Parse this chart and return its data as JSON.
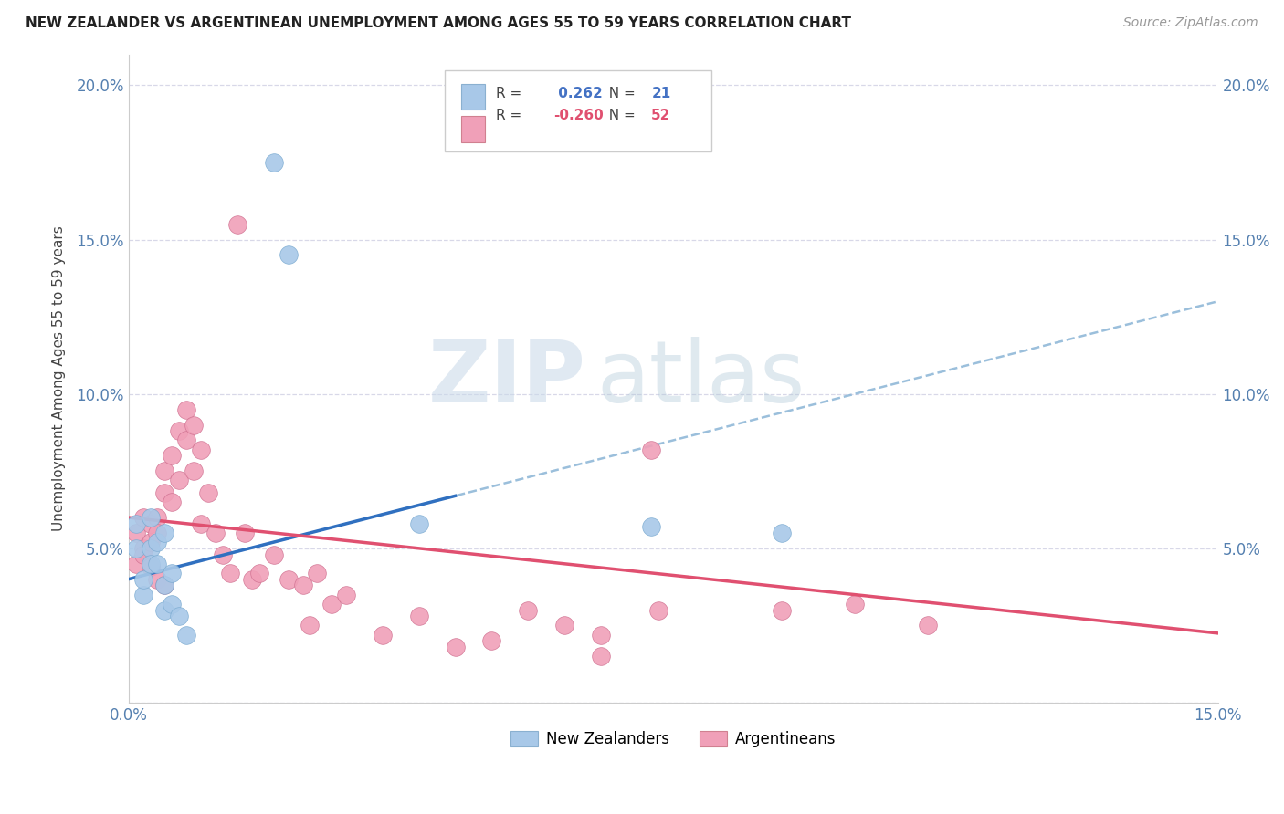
{
  "title": "NEW ZEALANDER VS ARGENTINEAN UNEMPLOYMENT AMONG AGES 55 TO 59 YEARS CORRELATION CHART",
  "source": "Source: ZipAtlas.com",
  "ylabel": "Unemployment Among Ages 55 to 59 years",
  "xlim": [
    0,
    0.15
  ],
  "ylim": [
    0,
    0.21
  ],
  "yticks": [
    0.0,
    0.05,
    0.1,
    0.15,
    0.2
  ],
  "yticklabels": [
    "",
    "5.0%",
    "10.0%",
    "15.0%",
    "20.0%"
  ],
  "xticks": [
    0.0,
    0.15
  ],
  "xticklabels": [
    "0.0%",
    "15.0%"
  ],
  "nz_color": "#a8c8e8",
  "arg_color": "#f0a0b8",
  "nz_trend_color": "#3070c0",
  "arg_trend_color": "#e05070",
  "dashed_color": "#90b8d8",
  "tick_color": "#5580b0",
  "grid_color": "#d8d8e8",
  "legend_nz_r": " 0.262",
  "legend_nz_n": "21",
  "legend_arg_r": "-0.260",
  "legend_arg_n": "52",
  "legend_label_nz": "New Zealanders",
  "legend_label_arg": "Argentineans",
  "watermark_zip": "ZIP",
  "watermark_atlas": "atlas",
  "nz_x": [
    0.001,
    0.001,
    0.002,
    0.002,
    0.003,
    0.003,
    0.003,
    0.004,
    0.004,
    0.005,
    0.005,
    0.005,
    0.006,
    0.006,
    0.007,
    0.008,
    0.02,
    0.022,
    0.04,
    0.072,
    0.09
  ],
  "nz_y": [
    0.058,
    0.05,
    0.035,
    0.04,
    0.05,
    0.045,
    0.06,
    0.045,
    0.052,
    0.055,
    0.038,
    0.03,
    0.032,
    0.042,
    0.028,
    0.022,
    0.175,
    0.145,
    0.058,
    0.057,
    0.055
  ],
  "arg_x": [
    0.001,
    0.001,
    0.002,
    0.002,
    0.002,
    0.003,
    0.003,
    0.003,
    0.004,
    0.004,
    0.004,
    0.005,
    0.005,
    0.005,
    0.006,
    0.006,
    0.007,
    0.007,
    0.008,
    0.008,
    0.009,
    0.009,
    0.01,
    0.01,
    0.011,
    0.012,
    0.013,
    0.014,
    0.015,
    0.016,
    0.017,
    0.018,
    0.02,
    0.022,
    0.024,
    0.025,
    0.026,
    0.028,
    0.03,
    0.035,
    0.04,
    0.045,
    0.05,
    0.055,
    0.06,
    0.065,
    0.065,
    0.072,
    0.073,
    0.09,
    0.1,
    0.11
  ],
  "arg_y": [
    0.055,
    0.045,
    0.06,
    0.05,
    0.048,
    0.058,
    0.052,
    0.044,
    0.06,
    0.055,
    0.04,
    0.075,
    0.068,
    0.038,
    0.08,
    0.065,
    0.088,
    0.072,
    0.095,
    0.085,
    0.09,
    0.075,
    0.082,
    0.058,
    0.068,
    0.055,
    0.048,
    0.042,
    0.155,
    0.055,
    0.04,
    0.042,
    0.048,
    0.04,
    0.038,
    0.025,
    0.042,
    0.032,
    0.035,
    0.022,
    0.028,
    0.018,
    0.02,
    0.03,
    0.025,
    0.015,
    0.022,
    0.082,
    0.03,
    0.03,
    0.032,
    0.025
  ],
  "nz_trend_intercept": 0.04,
  "nz_trend_slope": 0.6,
  "arg_trend_intercept": 0.06,
  "arg_trend_slope": -0.25
}
